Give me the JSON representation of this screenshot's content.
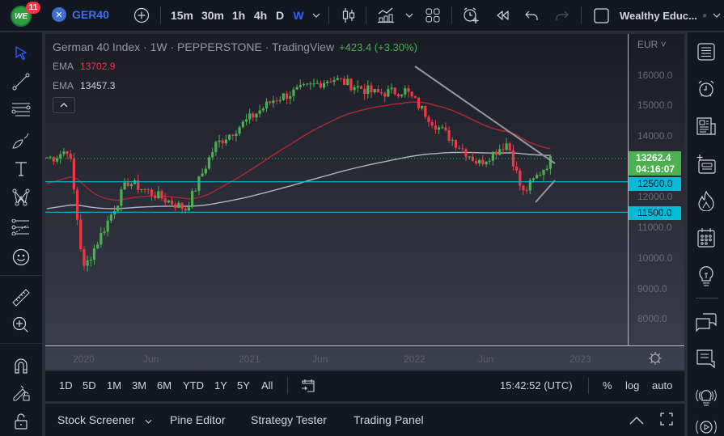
{
  "topbar": {
    "logo_text": "WE",
    "notification_count": "11",
    "symbol": "GER40",
    "symbol_icon": "x-circle-icon",
    "intervals": [
      "15m",
      "30m",
      "1h",
      "4h",
      "D",
      "W"
    ],
    "active_interval": "W",
    "layout_name": "Wealthy Educ...",
    "icons": [
      "plus-circle-icon",
      "chevron-down-icon",
      "candles-icon",
      "indicators-icon",
      "layout-grid-icon",
      "alert-clock-icon",
      "replay-icon",
      "undo-icon",
      "redo-icon",
      "square-icon"
    ]
  },
  "chart": {
    "title": "German 40 Index · 1W · PEPPERSTONE · TradingView",
    "change": "+423.4 (+3.30%)",
    "ema1_label": "EMA",
    "ema1_value": "13702.9",
    "ema2_label": "EMA",
    "ema2_value": "13457.3",
    "currency": "EUR",
    "current_price": "13262.4",
    "countdown": "04:16:07",
    "hline_1": "12500.0",
    "hline_2": "11500.0",
    "price_ticks": [
      "16000.0",
      "15000.0",
      "14000.0",
      "12000.0",
      "11000.0",
      "10000.0",
      "9000.0",
      "8000.0"
    ],
    "time_ticks": [
      "2020",
      "Jun",
      "2021",
      "Jun",
      "2022",
      "Jun",
      "2023"
    ],
    "colors": {
      "up": "#4caf50",
      "down": "#f23645",
      "ema_fast": "#b22833",
      "ema_slow": "#b2b5be",
      "hline": "#00bcd4",
      "trendline": "#9598a1",
      "accent": "#2962ff"
    }
  },
  "rangebar": {
    "ranges": [
      "1D",
      "5D",
      "1M",
      "3M",
      "6M",
      "YTD",
      "1Y",
      "5Y",
      "All"
    ],
    "time": "15:42:52 (UTC)",
    "percent": "%",
    "log": "log",
    "auto": "auto"
  },
  "bottombar": {
    "tabs": [
      "Stock Screener",
      "Pine Editor",
      "Strategy Tester",
      "Trading Panel"
    ]
  },
  "chart_data": {
    "type": "candlestick",
    "title": "German 40 Index · 1W · PEPPERSTONE",
    "x_range": [
      "2019-12",
      "2022-11"
    ],
    "ylim": [
      7600,
      16600
    ],
    "y_ticks": [
      8000,
      9000,
      10000,
      11000,
      12000,
      13000,
      14000,
      15000,
      16000
    ],
    "approx_path": [
      {
        "date": "2020-01",
        "close": 13300
      },
      {
        "date": "2020-02",
        "high": 13800,
        "close": 13600
      },
      {
        "date": "2020-03",
        "low": 8050,
        "close": 9600
      },
      {
        "date": "2020-06",
        "close": 12500
      },
      {
        "date": "2020-10",
        "close": 11600
      },
      {
        "date": "2020-12",
        "close": 13700
      },
      {
        "date": "2021-04",
        "close": 15200
      },
      {
        "date": "2021-08",
        "close": 15900
      },
      {
        "date": "2021-11",
        "high": 16300,
        "close": 15400
      },
      {
        "date": "2022-01",
        "high": 16200,
        "close": 15500
      },
      {
        "date": "2022-03",
        "low": 12500,
        "close": 14400
      },
      {
        "date": "2022-06",
        "close": 13100
      },
      {
        "date": "2022-08",
        "close": 13800
      },
      {
        "date": "2022-09",
        "low": 11900,
        "close": 12100
      },
      {
        "date": "2022-11",
        "close": 13262.4
      }
    ],
    "horizontal_lines": [
      12500,
      11500
    ],
    "indicators": [
      {
        "name": "EMA fast",
        "value": 13702.9
      },
      {
        "name": "EMA slow",
        "value": 13457.3
      }
    ]
  }
}
